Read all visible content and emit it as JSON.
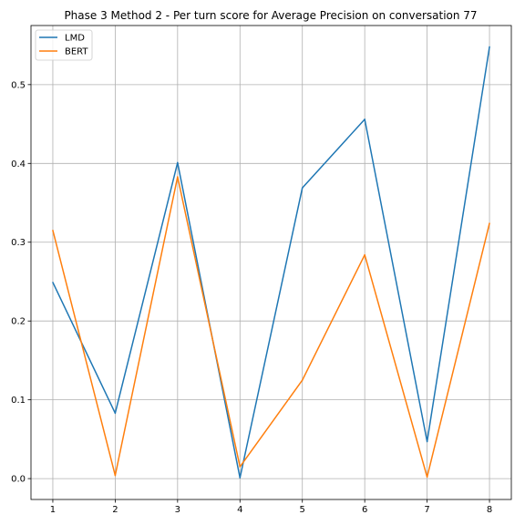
{
  "chart_data": {
    "type": "line",
    "title": "Phase 3 Method 2 - Per turn score for Average Precision on conversation 77",
    "xlabel": "",
    "ylabel": "",
    "x": [
      1,
      2,
      3,
      4,
      5,
      6,
      7,
      8
    ],
    "xlim": [
      0.65,
      8.35
    ],
    "ylim": [
      -0.0265,
      0.575
    ],
    "xticks": [
      "1",
      "2",
      "3",
      "4",
      "5",
      "6",
      "7",
      "8"
    ],
    "yticks": [
      "0.0",
      "0.1",
      "0.2",
      "0.3",
      "0.4",
      "0.5"
    ],
    "grid": true,
    "legend_position": "top-left",
    "series": [
      {
        "name": "LMD",
        "color": "#1f77b4",
        "values": [
          0.249,
          0.083,
          0.401,
          0.001,
          0.369,
          0.456,
          0.047,
          0.548
        ]
      },
      {
        "name": "BERT",
        "color": "#ff7f0e",
        "values": [
          0.315,
          0.004,
          0.383,
          0.015,
          0.125,
          0.284,
          0.002,
          0.324
        ]
      }
    ]
  }
}
